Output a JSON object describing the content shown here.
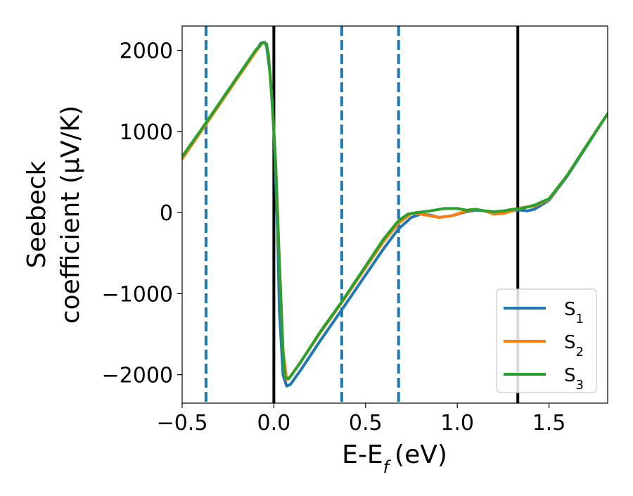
{
  "chart_data": {
    "type": "line",
    "xlabel": "E-E",
    "xlabel_sub": "f",
    "xlabel_unit": "(eV)",
    "ylabel_line1": "Seebeck",
    "ylabel_line2": "coefficient  (μV/K)",
    "xlim": [
      -0.5,
      1.82
    ],
    "ylim": [
      -2350,
      2300
    ],
    "x_ticks": [
      -0.5,
      0.0,
      0.5,
      1.0,
      1.5
    ],
    "x_tick_labels": [
      "−0.5",
      "0.0",
      "0.5",
      "1.0",
      "1.5"
    ],
    "y_ticks": [
      2000,
      1000,
      0,
      -1000,
      -2000
    ],
    "y_tick_labels": [
      "2000",
      "1000",
      "0",
      "−1000",
      "−2000"
    ],
    "grid": false,
    "legend_position": "bottom-right",
    "vlines": [
      {
        "x": -0.37,
        "style": "dashed",
        "color": "#1f77b4"
      },
      {
        "x": 0.0,
        "style": "solid",
        "color": "#000000"
      },
      {
        "x": 0.37,
        "style": "dashed",
        "color": "#1f77b4"
      },
      {
        "x": 0.68,
        "style": "dashed",
        "color": "#1f77b4"
      },
      {
        "x": 1.33,
        "style": "solid",
        "color": "#000000"
      }
    ],
    "series": [
      {
        "name": "S",
        "sub": "1",
        "color": "#1f77b4",
        "points": [
          [
            -0.5,
            680
          ],
          [
            -0.4,
            1000
          ],
          [
            -0.3,
            1330
          ],
          [
            -0.2,
            1660
          ],
          [
            -0.1,
            1990
          ],
          [
            -0.07,
            2090
          ],
          [
            -0.05,
            2100
          ],
          [
            -0.04,
            2050
          ],
          [
            -0.02,
            1700
          ],
          [
            0.0,
            1000
          ],
          [
            0.02,
            -200
          ],
          [
            0.03,
            -1200
          ],
          [
            0.05,
            -2000
          ],
          [
            0.07,
            -2140
          ],
          [
            0.09,
            -2120
          ],
          [
            0.15,
            -1930
          ],
          [
            0.25,
            -1590
          ],
          [
            0.37,
            -1200
          ],
          [
            0.5,
            -770
          ],
          [
            0.6,
            -440
          ],
          [
            0.68,
            -200
          ],
          [
            0.75,
            -60
          ],
          [
            0.8,
            -20
          ],
          [
            0.85,
            -30
          ],
          [
            0.9,
            -60
          ],
          [
            0.97,
            -40
          ],
          [
            1.05,
            10
          ],
          [
            1.1,
            30
          ],
          [
            1.15,
            20
          ],
          [
            1.2,
            0
          ],
          [
            1.25,
            10
          ],
          [
            1.3,
            30
          ],
          [
            1.35,
            30
          ],
          [
            1.38,
            20
          ],
          [
            1.42,
            40
          ],
          [
            1.5,
            150
          ],
          [
            1.6,
            450
          ],
          [
            1.7,
            800
          ],
          [
            1.82,
            1220
          ]
        ]
      },
      {
        "name": "S",
        "sub": "2",
        "color": "#ff7f0e",
        "points": [
          [
            -0.5,
            660
          ],
          [
            -0.4,
            990
          ],
          [
            -0.3,
            1320
          ],
          [
            -0.2,
            1650
          ],
          [
            -0.1,
            1980
          ],
          [
            -0.06,
            2100
          ],
          [
            -0.04,
            2080
          ],
          [
            -0.03,
            1950
          ],
          [
            -0.01,
            1400
          ],
          [
            0.01,
            600
          ],
          [
            0.03,
            -600
          ],
          [
            0.05,
            -1700
          ],
          [
            0.07,
            -2060
          ],
          [
            0.09,
            -2020
          ],
          [
            0.15,
            -1830
          ],
          [
            0.25,
            -1490
          ],
          [
            0.37,
            -1110
          ],
          [
            0.5,
            -680
          ],
          [
            0.6,
            -350
          ],
          [
            0.68,
            -130
          ],
          [
            0.75,
            -10
          ],
          [
            0.8,
            -20
          ],
          [
            0.85,
            -40
          ],
          [
            0.9,
            -60
          ],
          [
            0.97,
            -40
          ],
          [
            1.05,
            20
          ],
          [
            1.1,
            40
          ],
          [
            1.15,
            20
          ],
          [
            1.2,
            -20
          ],
          [
            1.25,
            -10
          ],
          [
            1.3,
            20
          ],
          [
            1.35,
            60
          ],
          [
            1.42,
            80
          ],
          [
            1.5,
            160
          ],
          [
            1.6,
            460
          ],
          [
            1.7,
            810
          ],
          [
            1.82,
            1220
          ]
        ]
      },
      {
        "name": "S",
        "sub": "3",
        "color": "#2ca02c",
        "points": [
          [
            -0.5,
            690
          ],
          [
            -0.4,
            1010
          ],
          [
            -0.3,
            1340
          ],
          [
            -0.2,
            1670
          ],
          [
            -0.1,
            2000
          ],
          [
            -0.06,
            2100
          ],
          [
            -0.04,
            2080
          ],
          [
            -0.03,
            1950
          ],
          [
            -0.01,
            1400
          ],
          [
            0.01,
            600
          ],
          [
            0.03,
            -600
          ],
          [
            0.05,
            -1700
          ],
          [
            0.06,
            -2030
          ],
          [
            0.08,
            -2050
          ],
          [
            0.1,
            -1990
          ],
          [
            0.15,
            -1830
          ],
          [
            0.25,
            -1480
          ],
          [
            0.37,
            -1100
          ],
          [
            0.5,
            -660
          ],
          [
            0.6,
            -320
          ],
          [
            0.68,
            -100
          ],
          [
            0.73,
            -20
          ],
          [
            0.78,
            0
          ],
          [
            0.85,
            20
          ],
          [
            0.93,
            50
          ],
          [
            1.0,
            50
          ],
          [
            1.05,
            30
          ],
          [
            1.1,
            40
          ],
          [
            1.15,
            20
          ],
          [
            1.2,
            10
          ],
          [
            1.25,
            20
          ],
          [
            1.3,
            40
          ],
          [
            1.35,
            50
          ],
          [
            1.42,
            90
          ],
          [
            1.5,
            170
          ],
          [
            1.6,
            460
          ],
          [
            1.7,
            810
          ],
          [
            1.82,
            1220
          ]
        ]
      }
    ]
  }
}
